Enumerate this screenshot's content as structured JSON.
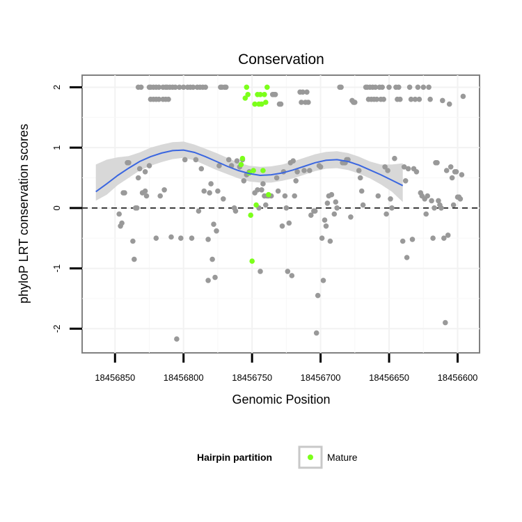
{
  "chart_data": {
    "type": "scatter",
    "title": "Conservation",
    "xlabel": "Genomic Position",
    "ylabel": "phyloP LRT conservation scores",
    "x_reversed": true,
    "xlim": [
      18456874,
      18456584
    ],
    "ylim": [
      -2.4,
      2.2
    ],
    "x_ticks": [
      18456850,
      18456800,
      18456750,
      18456700,
      18456650,
      18456600
    ],
    "y_ticks": [
      2,
      1,
      0,
      -1,
      -2
    ],
    "grid": true,
    "reference_line": {
      "y": 0,
      "style": "dashed"
    },
    "legend": {
      "title": "Hairpin partition",
      "entries": [
        "Mature"
      ],
      "position": "bottom"
    },
    "colors": {
      "default_points": "#999999",
      "mature_points": "#7cff1a",
      "smooth": "#3a66e0",
      "band": "#d6d6d6"
    },
    "series": [
      {
        "name": "",
        "color": "#999999",
        "points": [
          [
            18456847,
            -0.1
          ],
          [
            18456846,
            -0.3
          ],
          [
            18456845,
            -0.25
          ],
          [
            18456844,
            0.25
          ],
          [
            18456843,
            0.25
          ],
          [
            18456841,
            0.75
          ],
          [
            18456840,
            0.75
          ],
          [
            18456837,
            -0.55
          ],
          [
            18456836,
            -0.85
          ],
          [
            18456835,
            0.0
          ],
          [
            18456834,
            0.0
          ],
          [
            18456833,
            2.0
          ],
          [
            18456833,
            0.5
          ],
          [
            18456832,
            0.65
          ],
          [
            18456831,
            2.0
          ],
          [
            18456830,
            0.25
          ],
          [
            18456828,
            0.6
          ],
          [
            18456828,
            0.28
          ],
          [
            18456827,
            0.2
          ],
          [
            18456825,
            0.7
          ],
          [
            18456825,
            2.0
          ],
          [
            18456824,
            2.0
          ],
          [
            18456824,
            1.8
          ],
          [
            18456822,
            2.0
          ],
          [
            18456822,
            1.8
          ],
          [
            18456820,
            -0.5
          ],
          [
            18456820,
            2.0
          ],
          [
            18456820,
            1.8
          ],
          [
            18456818,
            2.0
          ],
          [
            18456818,
            1.8
          ],
          [
            18456817,
            0.2
          ],
          [
            18456815,
            2.0
          ],
          [
            18456815,
            1.8
          ],
          [
            18456814,
            0.3
          ],
          [
            18456813,
            2.0
          ],
          [
            18456813,
            1.8
          ],
          [
            18456812,
            2.0
          ],
          [
            18456811,
            1.8
          ],
          [
            18456810,
            2.0
          ],
          [
            18456809,
            -0.48
          ],
          [
            18456808,
            2.0
          ],
          [
            18456806,
            2.0
          ],
          [
            18456805,
            -2.17
          ],
          [
            18456803,
            2.0
          ],
          [
            18456802,
            -0.5
          ],
          [
            18456800,
            2.0
          ],
          [
            18456799,
            0.8
          ],
          [
            18456797,
            2.0
          ],
          [
            18456795,
            2.0
          ],
          [
            18456794,
            -0.5
          ],
          [
            18456793,
            2.0
          ],
          [
            18456791,
            0.8
          ],
          [
            18456790,
            2.0
          ],
          [
            18456789,
            -0.05
          ],
          [
            18456788,
            2.0
          ],
          [
            18456787,
            0.65
          ],
          [
            18456786,
            2.0
          ],
          [
            18456785,
            0.28
          ],
          [
            18456784,
            2.0
          ],
          [
            18456782,
            -0.52
          ],
          [
            18456782,
            -1.2
          ],
          [
            18456781,
            0.25
          ],
          [
            18456780,
            0.4
          ],
          [
            18456779,
            -0.85
          ],
          [
            18456778,
            -0.27
          ],
          [
            18456777,
            -1.15
          ],
          [
            18456776,
            -0.38
          ],
          [
            18456775,
            0.28
          ],
          [
            18456774,
            0.7
          ],
          [
            18456773,
            2.0
          ],
          [
            18456772,
            2.0
          ],
          [
            18456771,
            0.15
          ],
          [
            18456770,
            2.0
          ],
          [
            18456769,
            2.0
          ],
          [
            18456767,
            0.8
          ],
          [
            18456765,
            0.7
          ],
          [
            18456763,
            0.0
          ],
          [
            18456762,
            -0.05
          ],
          [
            18456761,
            0.78
          ],
          [
            18456759,
            0.68
          ],
          [
            18456757,
            0.8
          ],
          [
            18456756,
            0.45
          ],
          [
            18456754,
            0.55
          ],
          [
            18456752,
            0.6
          ],
          [
            18456748,
            0.25
          ],
          [
            18456746,
            0.3
          ],
          [
            18456745,
            0.0
          ],
          [
            18456744,
            -1.05
          ],
          [
            18456743,
            0.3
          ],
          [
            18456742,
            0.4
          ],
          [
            18456741,
            0.2
          ],
          [
            18456740,
            0.05
          ],
          [
            18456739,
            0.2
          ],
          [
            18456738,
            0.2
          ],
          [
            18456736,
            0.2
          ],
          [
            18456735,
            1.88
          ],
          [
            18456734,
            1.88
          ],
          [
            18456733,
            1.88
          ],
          [
            18456732,
            0.5
          ],
          [
            18456731,
            0.28
          ],
          [
            18456730,
            1.72
          ],
          [
            18456729,
            1.72
          ],
          [
            18456728,
            -0.3
          ],
          [
            18456727,
            0.6
          ],
          [
            18456726,
            0.2
          ],
          [
            18456725,
            0.0
          ],
          [
            18456724,
            -1.05
          ],
          [
            18456723,
            -0.25
          ],
          [
            18456722,
            0.75
          ],
          [
            18456721,
            -1.12
          ],
          [
            18456720,
            0.78
          ],
          [
            18456719,
            0.2
          ],
          [
            18456718,
            0.45
          ],
          [
            18456717,
            0.6
          ],
          [
            18456715,
            1.92
          ],
          [
            18456714,
            1.75
          ],
          [
            18456713,
            1.92
          ],
          [
            18456712,
            0.62
          ],
          [
            18456711,
            1.75
          ],
          [
            18456710,
            1.92
          ],
          [
            18456709,
            1.75
          ],
          [
            18456708,
            0.62
          ],
          [
            18456707,
            -0.12
          ],
          [
            18456705,
            -0.05
          ],
          [
            18456704,
            -0.05
          ],
          [
            18456703,
            -2.07
          ],
          [
            18456702,
            -1.45
          ],
          [
            18456701,
            0.7
          ],
          [
            18456700,
            0.68
          ],
          [
            18456699,
            -0.5
          ],
          [
            18456698,
            -1.2
          ],
          [
            18456697,
            -0.2
          ],
          [
            18456696,
            -0.3
          ],
          [
            18456695,
            0.08
          ],
          [
            18456694,
            0.2
          ],
          [
            18456693,
            -0.55
          ],
          [
            18456692,
            0.22
          ],
          [
            18456690,
            -0.1
          ],
          [
            18456689,
            0.1
          ],
          [
            18456688,
            0.0
          ],
          [
            18456686,
            2.0
          ],
          [
            18456685,
            2.0
          ],
          [
            18456684,
            0.75
          ],
          [
            18456683,
            0.75
          ],
          [
            18456682,
            0.75
          ],
          [
            18456681,
            0.8
          ],
          [
            18456680,
            0.8
          ],
          [
            18456678,
            -0.15
          ],
          [
            18456677,
            1.78
          ],
          [
            18456676,
            1.75
          ],
          [
            18456675,
            1.75
          ],
          [
            18456672,
            0.62
          ],
          [
            18456671,
            0.5
          ],
          [
            18456670,
            0.28
          ],
          [
            18456669,
            0.05
          ],
          [
            18456667,
            2.0
          ],
          [
            18456666,
            2.0
          ],
          [
            18456665,
            1.8
          ],
          [
            18456664,
            2.0
          ],
          [
            18456663,
            1.8
          ],
          [
            18456662,
            2.0
          ],
          [
            18456661,
            1.8
          ],
          [
            18456660,
            2.0
          ],
          [
            18456659,
            1.8
          ],
          [
            18456658,
            0.2
          ],
          [
            18456657,
            2.0
          ],
          [
            18456656,
            1.8
          ],
          [
            18456655,
            2.0
          ],
          [
            18456654,
            1.8
          ],
          [
            18456653,
            0.68
          ],
          [
            18456652,
            -0.1
          ],
          [
            18456651,
            0.62
          ],
          [
            18456650,
            2.0
          ],
          [
            18456649,
            0.15
          ],
          [
            18456648,
            0.0
          ],
          [
            18456646,
            0.82
          ],
          [
            18456645,
            2.0
          ],
          [
            18456644,
            1.8
          ],
          [
            18456643,
            2.0
          ],
          [
            18456642,
            1.8
          ],
          [
            18456640,
            -0.55
          ],
          [
            18456639,
            0.68
          ],
          [
            18456638,
            0.45
          ],
          [
            18456637,
            -0.82
          ],
          [
            18456636,
            0.65
          ],
          [
            18456635,
            2.0
          ],
          [
            18456634,
            1.8
          ],
          [
            18456633,
            -0.52
          ],
          [
            18456632,
            0.65
          ],
          [
            18456631,
            1.8
          ],
          [
            18456630,
            0.6
          ],
          [
            18456629,
            2.0
          ],
          [
            18456628,
            1.8
          ],
          [
            18456627,
            0.25
          ],
          [
            18456626,
            0.2
          ],
          [
            18456625,
            2.0
          ],
          [
            18456624,
            0.15
          ],
          [
            18456623,
            -0.1
          ],
          [
            18456622,
            0.2
          ],
          [
            18456621,
            2.0
          ],
          [
            18456620,
            1.8
          ],
          [
            18456619,
            0.12
          ],
          [
            18456618,
            -0.5
          ],
          [
            18456617,
            0.0
          ],
          [
            18456616,
            0.75
          ],
          [
            18456615,
            0.75
          ],
          [
            18456614,
            0.12
          ],
          [
            18456613,
            0.05
          ],
          [
            18456612,
            0.0
          ],
          [
            18456611,
            1.78
          ],
          [
            18456610,
            -0.5
          ],
          [
            18456609,
            -1.9
          ],
          [
            18456608,
            0.62
          ],
          [
            18456607,
            -0.45
          ],
          [
            18456606,
            1.72
          ],
          [
            18456605,
            0.68
          ],
          [
            18456604,
            0.5
          ],
          [
            18456603,
            0.05
          ],
          [
            18456602,
            0.6
          ],
          [
            18456601,
            0.6
          ],
          [
            18456600,
            0.18
          ],
          [
            18456599,
            0.18
          ],
          [
            18456598,
            0.15
          ],
          [
            18456597,
            0.55
          ],
          [
            18456596,
            1.85
          ]
        ]
      },
      {
        "name": "Mature",
        "color": "#7cff1a",
        "points": [
          [
            18456758,
            0.72
          ],
          [
            18456757,
            0.82
          ],
          [
            18456755,
            1.82
          ],
          [
            18456754,
            2.0
          ],
          [
            18456753,
            1.88
          ],
          [
            18456752,
            0.58
          ],
          [
            18456751,
            -0.12
          ],
          [
            18456750,
            -0.88
          ],
          [
            18456749,
            0.62
          ],
          [
            18456748,
            1.72
          ],
          [
            18456747,
            0.05
          ],
          [
            18456746,
            1.88
          ],
          [
            18456745,
            1.72
          ],
          [
            18456744,
            1.88
          ],
          [
            18456743,
            1.72
          ],
          [
            18456742,
            0.62
          ],
          [
            18456741,
            1.88
          ],
          [
            18456740,
            1.75
          ],
          [
            18456739,
            2.0
          ],
          [
            18456738,
            0.22
          ]
        ]
      }
    ],
    "smooth": {
      "name": "",
      "color": "#3a66e0",
      "points": [
        [
          18456864,
          0.27,
          0.12,
          0.72
        ],
        [
          18456856,
          0.4,
          0.22,
          0.8
        ],
        [
          18456848,
          0.54,
          0.38,
          0.84
        ],
        [
          18456840,
          0.66,
          0.5,
          0.86
        ],
        [
          18456832,
          0.77,
          0.62,
          0.92
        ],
        [
          18456824,
          0.85,
          0.7,
          1.0
        ],
        [
          18456816,
          0.91,
          0.76,
          1.05
        ],
        [
          18456808,
          0.95,
          0.81,
          1.09
        ],
        [
          18456800,
          0.96,
          0.83,
          1.1
        ],
        [
          18456792,
          0.92,
          0.79,
          1.05
        ],
        [
          18456784,
          0.85,
          0.71,
          0.98
        ],
        [
          18456776,
          0.77,
          0.63,
          0.91
        ],
        [
          18456768,
          0.69,
          0.56,
          0.83
        ],
        [
          18456760,
          0.62,
          0.49,
          0.75
        ],
        [
          18456752,
          0.57,
          0.44,
          0.7
        ],
        [
          18456744,
          0.54,
          0.42,
          0.68
        ],
        [
          18456736,
          0.55,
          0.42,
          0.69
        ],
        [
          18456728,
          0.58,
          0.45,
          0.72
        ],
        [
          18456720,
          0.63,
          0.49,
          0.77
        ],
        [
          18456712,
          0.69,
          0.55,
          0.83
        ],
        [
          18456704,
          0.75,
          0.61,
          0.89
        ],
        [
          18456696,
          0.79,
          0.65,
          0.93
        ],
        [
          18456688,
          0.8,
          0.66,
          0.94
        ],
        [
          18456680,
          0.77,
          0.63,
          0.91
        ],
        [
          18456672,
          0.71,
          0.57,
          0.85
        ],
        [
          18456664,
          0.63,
          0.49,
          0.77
        ],
        [
          18456656,
          0.55,
          0.39,
          0.72
        ],
        [
          18456648,
          0.46,
          0.27,
          0.72
        ],
        [
          18456640,
          0.37,
          0.1,
          0.74
        ]
      ]
    }
  }
}
